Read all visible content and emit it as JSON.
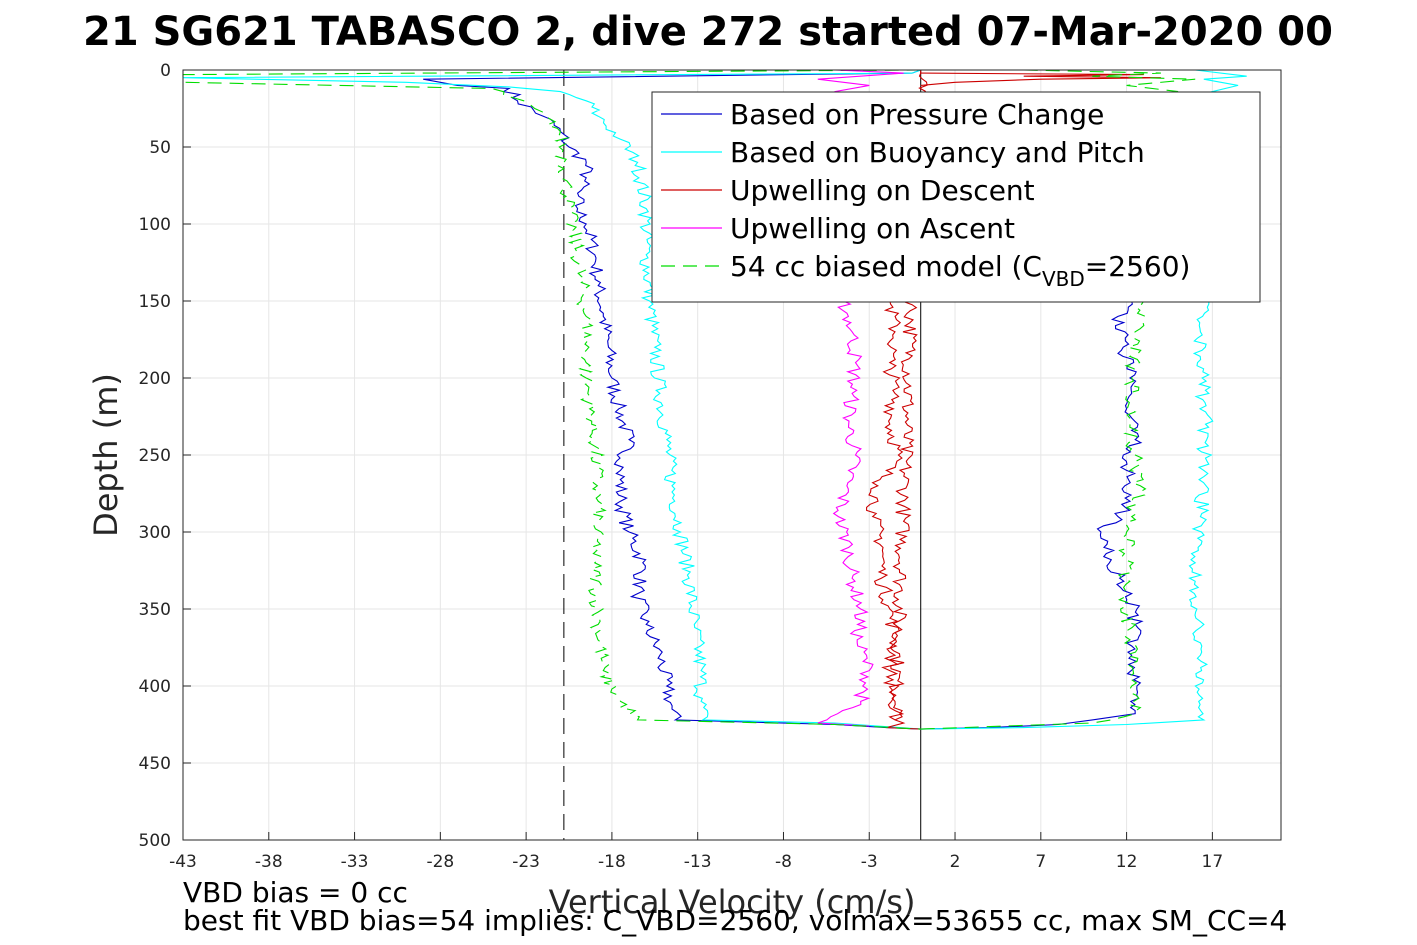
{
  "title": "21 SG621 TABASCO 2, dive 272 started 07-Mar-2020 00",
  "footnotes": [
    "VBD bias = 0 cc",
    "best fit VBD bias=54 implies: C_VBD=2560, volmax=53655 cc, max SM_CC=4"
  ],
  "chart_data": {
    "type": "line",
    "title": "21 SG621 TABASCO 2, dive 272 started 07-Mar-2020 00",
    "xlabel": "Vertical Velocity (cm/s)",
    "ylabel": "Depth (m)",
    "xlim": [
      -43,
      21
    ],
    "ylim": [
      0,
      500
    ],
    "y_reversed": true,
    "grid": true,
    "xticks": [
      -43,
      -38,
      -33,
      -28,
      -23,
      -18,
      -13,
      -8,
      -3,
      2,
      7,
      12,
      17
    ],
    "yticks": [
      0,
      50,
      100,
      150,
      200,
      250,
      300,
      350,
      400,
      450,
      500
    ],
    "reference_lines": [
      {
        "axis": "x",
        "value": 0,
        "style": "solid",
        "color": "#000000"
      },
      {
        "axis": "x",
        "value": -20.8,
        "style": "dashed",
        "color": "#000000"
      }
    ],
    "legend_position": "top-right",
    "legend": [
      {
        "name": "Based on Pressure Change",
        "color": "#0000cc",
        "style": "solid"
      },
      {
        "name": "Based on Buoyancy and Pitch",
        "color": "#00ffff",
        "style": "solid"
      },
      {
        "name": "Upwelling on Descent",
        "color": "#cc0000",
        "style": "solid"
      },
      {
        "name": "Upwelling on Ascent",
        "color": "#ff00ff",
        "style": "solid"
      },
      {
        "name": "54 cc biased model (C",
        "sub": "VBD",
        "suffix": "=2560)",
        "color": "#00dd00",
        "style": "dashed"
      }
    ],
    "series": [
      {
        "key": "pressure_descent",
        "legend": 0,
        "color": "#0000cc",
        "dash": "",
        "points": [
          [
            0,
            0
          ],
          [
            -0.5,
            2
          ],
          [
            -29,
            6
          ],
          [
            -27,
            10
          ],
          [
            -24,
            12
          ],
          [
            -23.5,
            20
          ],
          [
            -22,
            30
          ],
          [
            -21,
            40
          ],
          [
            -20.5,
            50
          ],
          [
            -19.5,
            60
          ],
          [
            -19.5,
            70
          ],
          [
            -20,
            80
          ],
          [
            -20,
            90
          ],
          [
            -19.5,
            100
          ],
          [
            -19,
            120
          ],
          [
            -18.8,
            140
          ],
          [
            -18.5,
            160
          ],
          [
            -18.2,
            180
          ],
          [
            -18,
            200
          ],
          [
            -17.6,
            220
          ],
          [
            -17,
            240
          ],
          [
            -17.5,
            260
          ],
          [
            -17.5,
            280
          ],
          [
            -17,
            300
          ],
          [
            -16.2,
            320
          ],
          [
            -16.5,
            340
          ],
          [
            -16,
            360
          ],
          [
            -15.2,
            380
          ],
          [
            -14.8,
            400
          ],
          [
            -14.5,
            415
          ],
          [
            -14.3,
            422
          ],
          [
            -5,
            425
          ],
          [
            -2,
            427
          ],
          [
            0,
            428
          ]
        ]
      },
      {
        "key": "pressure_ascent",
        "legend": 0,
        "color": "#0000cc",
        "dash": "",
        "points": [
          [
            0,
            428
          ],
          [
            4,
            427
          ],
          [
            8,
            425
          ],
          [
            10,
            422
          ],
          [
            12.5,
            418
          ],
          [
            12.6,
            400
          ],
          [
            12.3,
            380
          ],
          [
            12.5,
            360
          ],
          [
            12.3,
            340
          ],
          [
            11.6,
            330
          ],
          [
            11,
            320
          ],
          [
            10.5,
            300
          ],
          [
            11.5,
            290
          ],
          [
            12.2,
            280
          ],
          [
            12,
            260
          ],
          [
            12.5,
            240
          ],
          [
            12,
            220
          ],
          [
            12.2,
            200
          ],
          [
            11.8,
            180
          ],
          [
            11.5,
            160
          ],
          [
            12.3,
            150
          ]
        ]
      },
      {
        "key": "buoyancy_descent",
        "legend": 1,
        "color": "#00ffff",
        "dash": "",
        "points": [
          [
            0,
            0
          ],
          [
            -0.5,
            2
          ],
          [
            -43,
            5
          ],
          [
            -30,
            8
          ],
          [
            -24,
            11
          ],
          [
            -21,
            14
          ],
          [
            -19.5,
            20
          ],
          [
            -18.8,
            30
          ],
          [
            -17.5,
            45
          ],
          [
            -16.5,
            60
          ],
          [
            -16,
            90
          ],
          [
            -16,
            120
          ],
          [
            -15.8,
            150
          ],
          [
            -15.5,
            180
          ],
          [
            -15.2,
            210
          ],
          [
            -14.8,
            240
          ],
          [
            -14.5,
            270
          ],
          [
            -14,
            300
          ],
          [
            -13.5,
            330
          ],
          [
            -13.2,
            360
          ],
          [
            -12.8,
            390
          ],
          [
            -12.8,
            410
          ],
          [
            -12.7,
            422
          ],
          [
            -5,
            424
          ],
          [
            0,
            428
          ]
        ]
      },
      {
        "key": "buoyancy_ascent",
        "legend": 1,
        "color": "#00ffff",
        "dash": "",
        "points": [
          [
            0,
            428
          ],
          [
            6,
            427
          ],
          [
            12,
            425
          ],
          [
            16.5,
            422
          ],
          [
            16.2,
            410
          ],
          [
            16.3,
            380
          ],
          [
            16.1,
            350
          ],
          [
            16,
            320
          ],
          [
            16.3,
            290
          ],
          [
            16.5,
            260
          ],
          [
            16.6,
            230
          ],
          [
            16.4,
            200
          ],
          [
            16.3,
            170
          ],
          [
            16.8,
            150
          ]
        ]
      },
      {
        "key": "upwelling_descent",
        "legend": 2,
        "color": "#cc0000",
        "dash": "",
        "points": [
          [
            0,
            0
          ],
          [
            0,
            2
          ],
          [
            -1.5,
            422
          ],
          [
            -1,
            424
          ],
          [
            -2,
            427
          ],
          [
            0,
            428
          ]
        ]
      },
      {
        "key": "upwelling_descent_b",
        "legend": 2,
        "color": "#cc0000",
        "dash": "",
        "points": [
          [
            -1.8,
            150
          ],
          [
            -1.5,
            170
          ],
          [
            -1.8,
            190
          ],
          [
            -1.5,
            210
          ],
          [
            -1.8,
            230
          ],
          [
            -1.3,
            250
          ],
          [
            -2.5,
            270
          ],
          [
            -2.8,
            290
          ],
          [
            -2.2,
            310
          ],
          [
            -2.3,
            330
          ],
          [
            -1.8,
            350
          ],
          [
            -1.5,
            370
          ],
          [
            -1.8,
            390
          ],
          [
            -1.5,
            410
          ],
          [
            -1.5,
            422
          ]
        ]
      },
      {
        "key": "upwelling_ascent",
        "legend": 3,
        "color": "#ff00ff",
        "dash": "",
        "points": [
          [
            -4.5,
            150
          ],
          [
            -4,
            170
          ],
          [
            -3.8,
            190
          ],
          [
            -4,
            210
          ],
          [
            -4.2,
            230
          ],
          [
            -3.8,
            250
          ],
          [
            -4.3,
            270
          ],
          [
            -4.8,
            290
          ],
          [
            -4.2,
            310
          ],
          [
            -4,
            330
          ],
          [
            -3.5,
            350
          ],
          [
            -3.7,
            370
          ],
          [
            -3,
            390
          ],
          [
            -3.5,
            410
          ],
          [
            -6,
            424
          ],
          [
            -3,
            426
          ]
        ]
      },
      {
        "key": "model_descent",
        "legend": 4,
        "color": "#00dd00",
        "dash": "14,8",
        "points": [
          [
            0,
            0
          ],
          [
            -43,
            3
          ],
          [
            -43,
            8
          ],
          [
            -25,
            12
          ],
          [
            -22.5,
            25
          ],
          [
            -21,
            40
          ],
          [
            -20.8,
            60
          ],
          [
            -20.5,
            90
          ],
          [
            -20,
            120
          ],
          [
            -19.5,
            160
          ],
          [
            -19.5,
            200
          ],
          [
            -19,
            240
          ],
          [
            -18.8,
            280
          ],
          [
            -19,
            320
          ],
          [
            -18.8,
            360
          ],
          [
            -18.5,
            390
          ],
          [
            -17.5,
            410
          ],
          [
            -16.5,
            422
          ],
          [
            -5,
            425
          ],
          [
            0,
            428
          ]
        ]
      },
      {
        "key": "model_ascent",
        "legend": 4,
        "color": "#00dd00",
        "dash": "14,8",
        "points": [
          [
            0,
            428
          ],
          [
            5,
            426
          ],
          [
            10,
            424
          ],
          [
            12.5,
            418
          ],
          [
            12.3,
            400
          ],
          [
            12.2,
            370
          ],
          [
            12,
            340
          ],
          [
            12,
            300
          ],
          [
            12.3,
            290
          ],
          [
            12.8,
            270
          ],
          [
            12.5,
            250
          ],
          [
            12.2,
            230
          ],
          [
            12.3,
            200
          ],
          [
            12.5,
            170
          ],
          [
            13,
            150
          ]
        ]
      },
      {
        "key": "surface_spikes_red",
        "legend": 2,
        "color": "#cc0000",
        "dash": "",
        "points": [
          [
            0,
            2
          ],
          [
            13,
            3
          ],
          [
            6,
            4
          ],
          [
            14,
            5
          ],
          [
            7,
            6
          ],
          [
            2,
            8
          ],
          [
            0,
            10
          ]
        ]
      },
      {
        "key": "surface_spikes_magenta",
        "legend": 3,
        "color": "#ff00ff",
        "dash": "",
        "points": [
          [
            -5,
            0
          ],
          [
            -1,
            2
          ],
          [
            -6,
            6
          ],
          [
            -3,
            10
          ],
          [
            -5,
            14
          ],
          [
            -4,
            20
          ]
        ]
      },
      {
        "key": "surface_spikes_green",
        "legend": 4,
        "color": "#00dd00",
        "dash": "14,8",
        "points": [
          [
            6,
            0
          ],
          [
            14,
            2
          ],
          [
            10,
            4
          ],
          [
            16,
            6
          ],
          [
            12,
            10
          ],
          [
            15,
            14
          ]
        ]
      },
      {
        "key": "surface_spikes_cyan",
        "legend": 1,
        "color": "#00ffff",
        "dash": "",
        "points": [
          [
            16,
            0
          ],
          [
            19,
            4
          ],
          [
            16.5,
            6
          ],
          [
            18.5,
            10
          ],
          [
            17,
            14
          ],
          [
            17.5,
            20
          ]
        ]
      }
    ]
  }
}
